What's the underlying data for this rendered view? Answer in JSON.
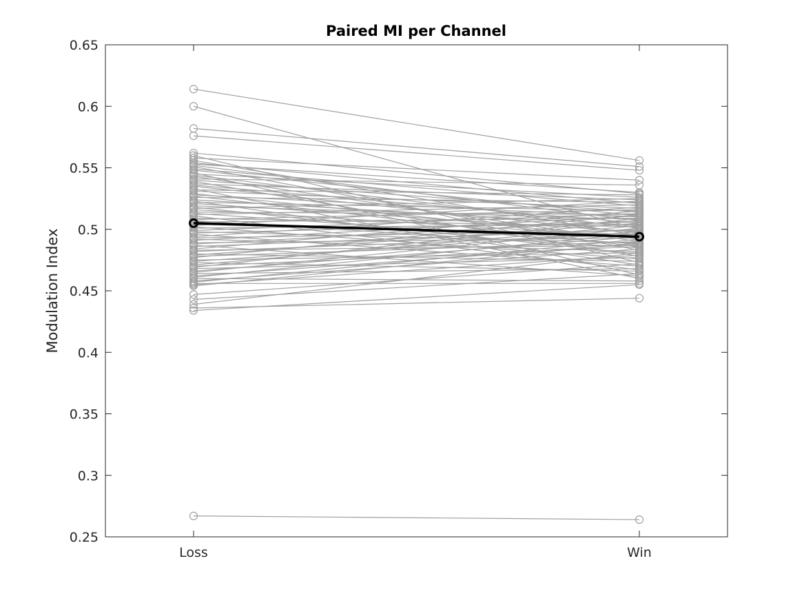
{
  "chart_data": {
    "type": "line",
    "title": "Paired MI per Channel",
    "xlabel": "",
    "ylabel": "Modulation Index",
    "categories": [
      "Loss",
      "Win"
    ],
    "ylim": [
      0.25,
      0.65
    ],
    "yticks": [
      0.25,
      0.3,
      0.35,
      0.4,
      0.45,
      0.5,
      0.55,
      0.6,
      0.65
    ],
    "ytick_labels": [
      "0.25",
      "0.3",
      "0.35",
      "0.4",
      "0.45",
      "0.5",
      "0.55",
      "0.6",
      "0.65"
    ],
    "grid": false,
    "legend": "none",
    "colors": {
      "pairs": "#a0a0a0",
      "mean": "#000000",
      "axes": "#262626"
    },
    "pairs": [
      [
        0.614,
        0.556
      ],
      [
        0.6,
        0.5
      ],
      [
        0.582,
        0.551
      ],
      [
        0.576,
        0.548
      ],
      [
        0.562,
        0.529
      ],
      [
        0.56,
        0.473
      ],
      [
        0.558,
        0.54
      ],
      [
        0.556,
        0.495
      ],
      [
        0.554,
        0.521
      ],
      [
        0.553,
        0.53
      ],
      [
        0.552,
        0.507
      ],
      [
        0.551,
        0.483
      ],
      [
        0.549,
        0.519
      ],
      [
        0.548,
        0.511
      ],
      [
        0.546,
        0.463
      ],
      [
        0.545,
        0.526
      ],
      [
        0.544,
        0.501
      ],
      [
        0.543,
        0.49
      ],
      [
        0.541,
        0.536
      ],
      [
        0.54,
        0.514
      ],
      [
        0.539,
        0.478
      ],
      [
        0.537,
        0.524
      ],
      [
        0.536,
        0.505
      ],
      [
        0.535,
        0.497
      ],
      [
        0.533,
        0.46
      ],
      [
        0.532,
        0.528
      ],
      [
        0.531,
        0.517
      ],
      [
        0.529,
        0.492
      ],
      [
        0.528,
        0.51
      ],
      [
        0.527,
        0.486
      ],
      [
        0.526,
        0.522
      ],
      [
        0.524,
        0.503
      ],
      [
        0.523,
        0.471
      ],
      [
        0.522,
        0.515
      ],
      [
        0.521,
        0.498
      ],
      [
        0.519,
        0.508
      ],
      [
        0.518,
        0.48
      ],
      [
        0.517,
        0.525
      ],
      [
        0.516,
        0.494
      ],
      [
        0.514,
        0.512
      ],
      [
        0.513,
        0.488
      ],
      [
        0.512,
        0.52
      ],
      [
        0.511,
        0.467
      ],
      [
        0.509,
        0.502
      ],
      [
        0.508,
        0.516
      ],
      [
        0.507,
        0.485
      ],
      [
        0.506,
        0.509
      ],
      [
        0.504,
        0.496
      ],
      [
        0.503,
        0.523
      ],
      [
        0.502,
        0.476
      ],
      [
        0.501,
        0.504
      ],
      [
        0.499,
        0.513
      ],
      [
        0.498,
        0.489
      ],
      [
        0.497,
        0.506
      ],
      [
        0.496,
        0.47
      ],
      [
        0.494,
        0.518
      ],
      [
        0.493,
        0.499
      ],
      [
        0.492,
        0.482
      ],
      [
        0.491,
        0.511
      ],
      [
        0.489,
        0.493
      ],
      [
        0.488,
        0.507
      ],
      [
        0.487,
        0.462
      ],
      [
        0.486,
        0.5
      ],
      [
        0.484,
        0.515
      ],
      [
        0.483,
        0.487
      ],
      [
        0.482,
        0.496
      ],
      [
        0.48,
        0.474
      ],
      [
        0.479,
        0.505
      ],
      [
        0.478,
        0.49
      ],
      [
        0.477,
        0.512
      ],
      [
        0.475,
        0.481
      ],
      [
        0.474,
        0.498
      ],
      [
        0.473,
        0.466
      ],
      [
        0.471,
        0.503
      ],
      [
        0.47,
        0.486
      ],
      [
        0.469,
        0.509
      ],
      [
        0.468,
        0.477
      ],
      [
        0.466,
        0.494
      ],
      [
        0.465,
        0.501
      ],
      [
        0.464,
        0.468
      ],
      [
        0.462,
        0.488
      ],
      [
        0.461,
        0.497
      ],
      [
        0.46,
        0.458
      ],
      [
        0.458,
        0.484
      ],
      [
        0.457,
        0.492
      ],
      [
        0.456,
        0.456
      ],
      [
        0.455,
        0.479
      ],
      [
        0.454,
        0.489
      ],
      [
        0.447,
        0.472
      ],
      [
        0.443,
        0.464
      ],
      [
        0.439,
        0.481
      ],
      [
        0.436,
        0.444
      ],
      [
        0.434,
        0.455
      ],
      [
        0.267,
        0.264
      ]
    ],
    "mean": {
      "name": "Mean",
      "values": [
        0.505,
        0.494
      ]
    }
  }
}
